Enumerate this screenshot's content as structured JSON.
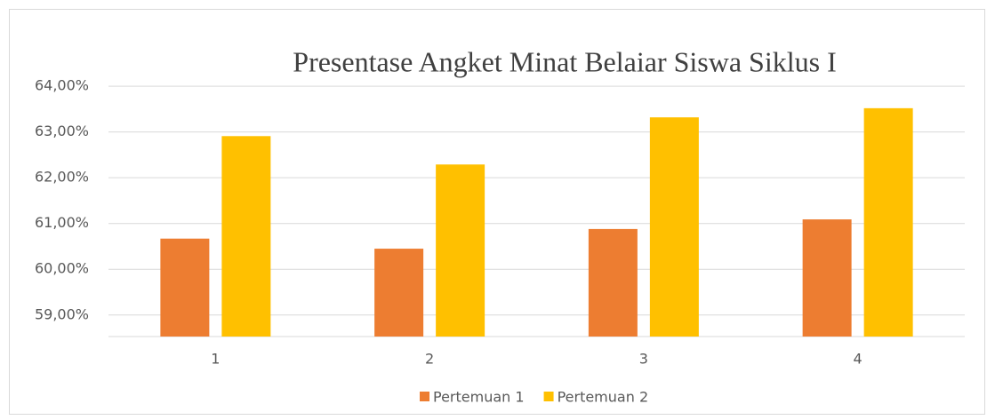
{
  "chart_data": {
    "type": "bar",
    "title": "Presentase Angket Minat Belaiar Siswa Siklus I",
    "categories": [
      "1",
      "2",
      "3",
      "4"
    ],
    "series": [
      {
        "name": "Pertemuan 1",
        "color": "#ed7d31",
        "values": [
          60.67,
          60.45,
          60.88,
          61.09
        ]
      },
      {
        "name": "Pertemuan 2",
        "color": "#ffc000",
        "values": [
          62.91,
          62.29,
          63.32,
          63.52
        ]
      }
    ],
    "ylim": [
      58.53,
      64.08
    ],
    "yticks": [
      {
        "value": 59,
        "label": "59,00%"
      },
      {
        "value": 60,
        "label": "60,00%"
      },
      {
        "value": 61,
        "label": "61,00%"
      },
      {
        "value": 62,
        "label": "62,00%"
      },
      {
        "value": 63,
        "label": "63,00%"
      },
      {
        "value": 64,
        "label": "64,00%"
      }
    ],
    "grid": true,
    "legend": "bottom"
  }
}
